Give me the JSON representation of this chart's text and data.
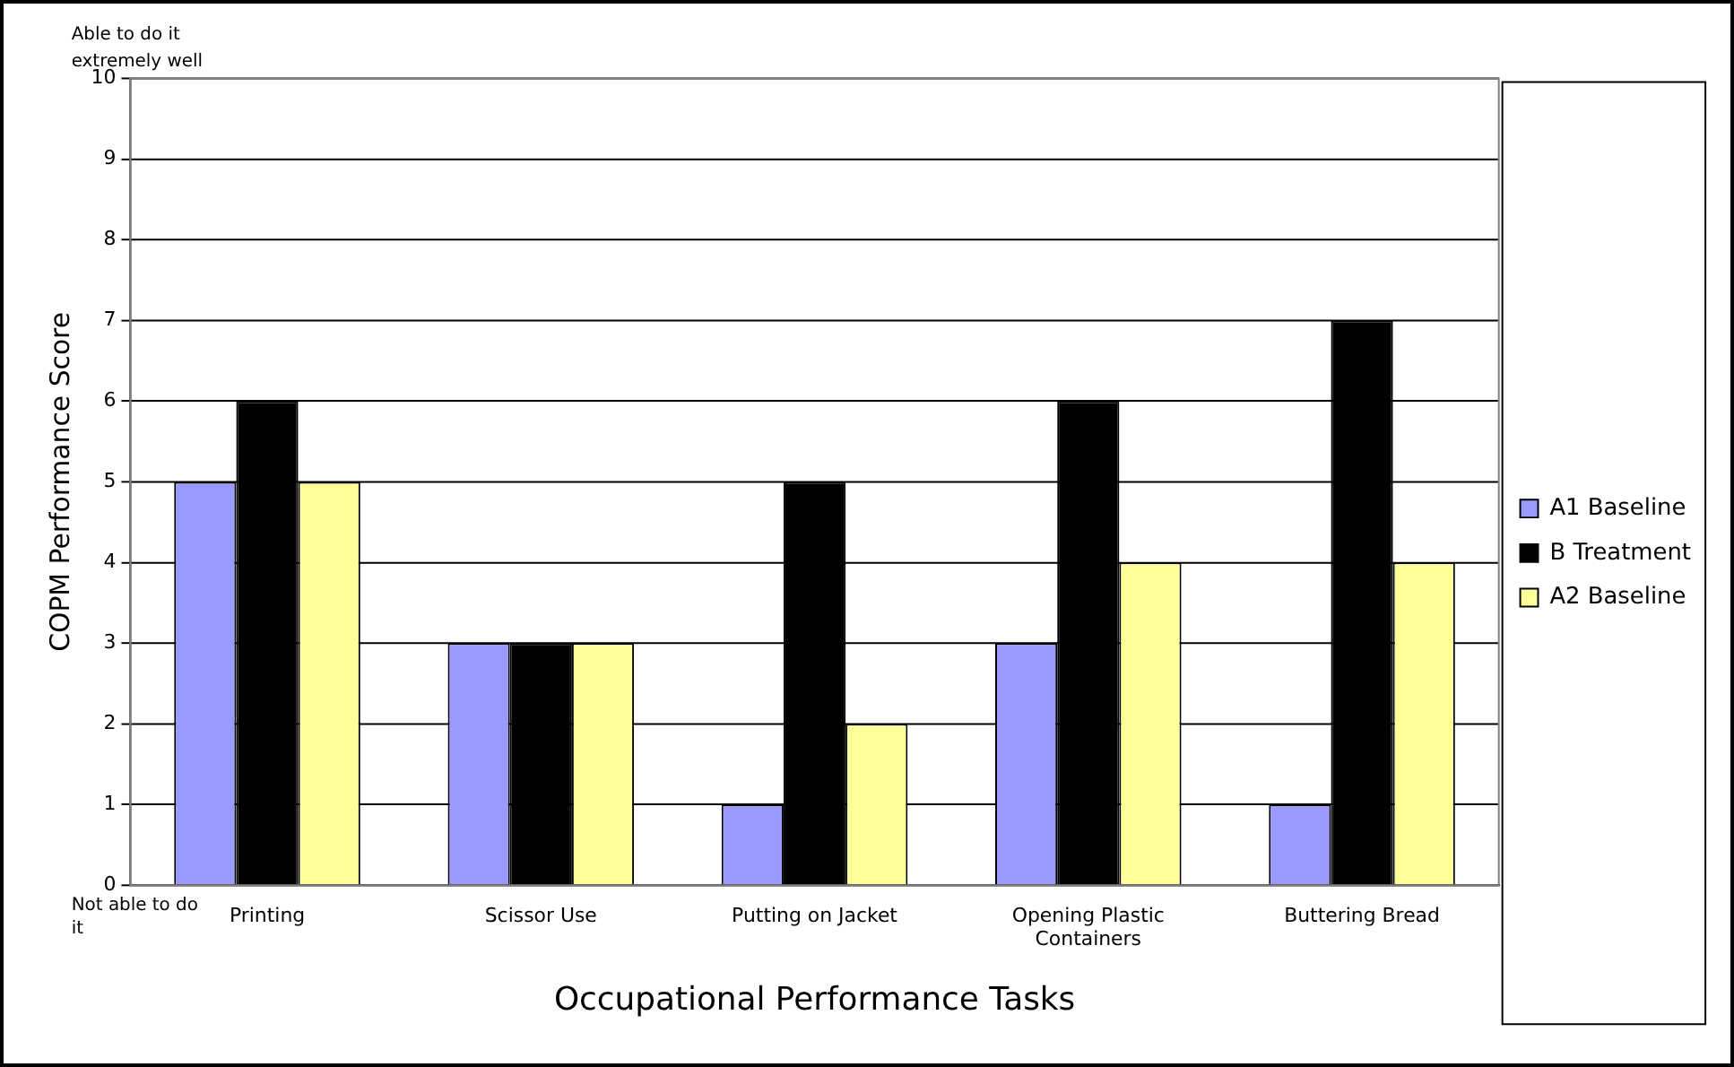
{
  "chart_data": {
    "type": "bar",
    "xlabel": "Occupational Performance Tasks",
    "ylabel": "COPM Performance Score",
    "categories": [
      "Printing",
      "Scissor Use",
      "Putting on Jacket",
      "Opening Plastic Containers",
      "Buttering Bread"
    ],
    "series": [
      {
        "name": "A1 Baseline",
        "color": "#9999ff",
        "values": [
          5,
          3,
          1,
          3,
          1
        ]
      },
      {
        "name": "B Treatment",
        "color": "#000000",
        "values": [
          6,
          3,
          5,
          6,
          7
        ]
      },
      {
        "name": "A2 Baseline",
        "color": "#ffff99",
        "values": [
          5,
          3,
          2,
          4,
          4
        ]
      }
    ],
    "ylim": [
      0,
      10
    ],
    "yticks": [
      0,
      1,
      2,
      3,
      4,
      5,
      6,
      7,
      8,
      9,
      10
    ],
    "grid": "y",
    "legend": "right",
    "annotations": [
      "Able to do it extremely well",
      "Not able to do it"
    ]
  }
}
